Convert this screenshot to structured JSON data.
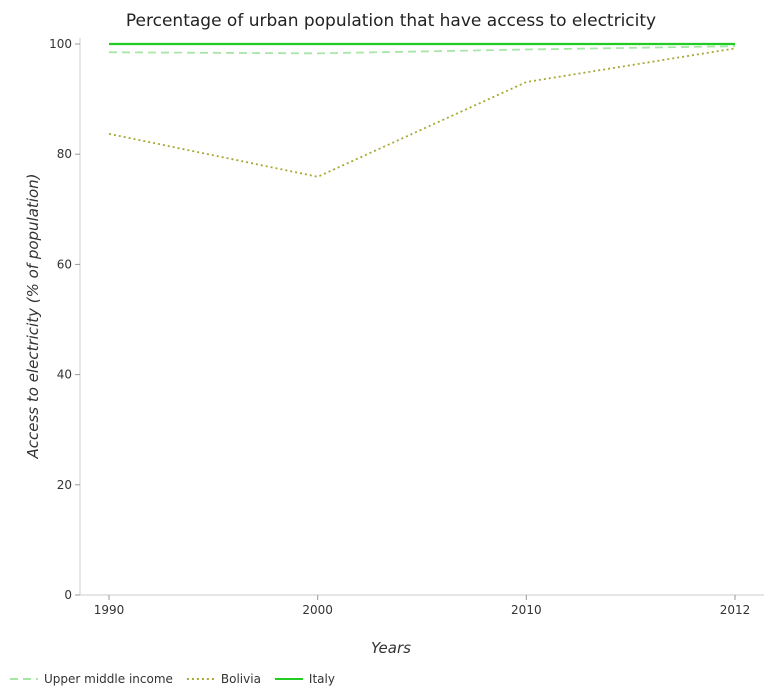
{
  "chart_data": {
    "type": "line",
    "title": "Percentage of urban population that have access to electricity",
    "xlabel": "Years",
    "ylabel": "Access to electricity (% of population)",
    "categories": [
      "1990",
      "2000",
      "2010",
      "2012"
    ],
    "ylim": [
      0,
      100
    ],
    "yticks": [
      "0",
      "20",
      "40",
      "60",
      "80",
      "100"
    ],
    "grid": false,
    "legend_position": "bottom-left",
    "series": [
      {
        "name": "Upper middle income",
        "color": "#a8e6a8",
        "dash": "8,5",
        "values": [
          98.5,
          98.3,
          99.0,
          99.6
        ]
      },
      {
        "name": "Bolivia",
        "color": "#a8a832",
        "dash": "2,3",
        "values": [
          83.7,
          75.9,
          93.1,
          99.2
        ]
      },
      {
        "name": "Italy",
        "color": "#22cc22",
        "dash": "",
        "values": [
          100,
          100,
          100,
          100
        ]
      }
    ]
  }
}
